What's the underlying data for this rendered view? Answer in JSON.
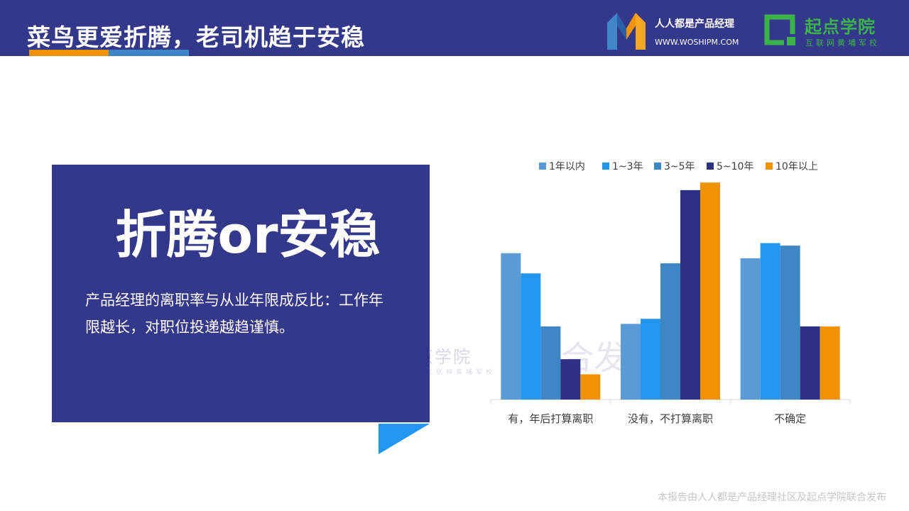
{
  "header": {
    "title": "菜鸟更爱折腾，老司机趋于安稳",
    "logo_woshipm_name": "人人都是产品经理",
    "logo_woshipm_url": "WWW.WOSHIPM.COM",
    "logo_qidian_name": "起点学院",
    "logo_qidian_sub": "互联网黄埔军校"
  },
  "panel": {
    "title": "折腾or安稳",
    "body": "产品经理的离职率与从业年限成反比：工作年限越长，对职位投递越趋谨慎。"
  },
  "watermark": {
    "mark": "起点学院",
    "mark_sub": "互联网黄埔军校",
    "big": "合发"
  },
  "footer": {
    "text": "本报告由人人都是产品经理社区及起点学院联合发布"
  },
  "colors": {
    "brand_navy": "#34388a",
    "accent_orange": "#f39200",
    "accent_blue": "#3f86c6",
    "qidian_green": "#3cb34a"
  },
  "icons": {
    "woshipm_logo": "woshipm-m-logo-icon",
    "qidian_logo": "qidian-square-logo-icon",
    "corner": "blue-triangle-decoration"
  },
  "chart_data": {
    "type": "bar",
    "categories": [
      "有，年后打算离职",
      "没有，不打算离职",
      "不确定"
    ],
    "series": [
      {
        "name": "1年以内",
        "color": "#5b9bd5",
        "values": [
          29,
          15,
          28
        ]
      },
      {
        "name": "1~3年",
        "color": "#2196f3",
        "values": [
          25,
          16,
          31
        ]
      },
      {
        "name": "3~5年",
        "color": "#3e86c4",
        "values": [
          14.5,
          27,
          30.5
        ]
      },
      {
        "name": "5~10年",
        "color": "#2e3183",
        "values": [
          8,
          41.5,
          14.5
        ]
      },
      {
        "name": "10年以上",
        "color": "#f39200",
        "values": [
          5,
          43,
          14.5
        ]
      }
    ],
    "ylim": [
      0,
      45
    ],
    "grid": false,
    "legend": "top",
    "title": "",
    "xlabel": "",
    "ylabel": ""
  }
}
